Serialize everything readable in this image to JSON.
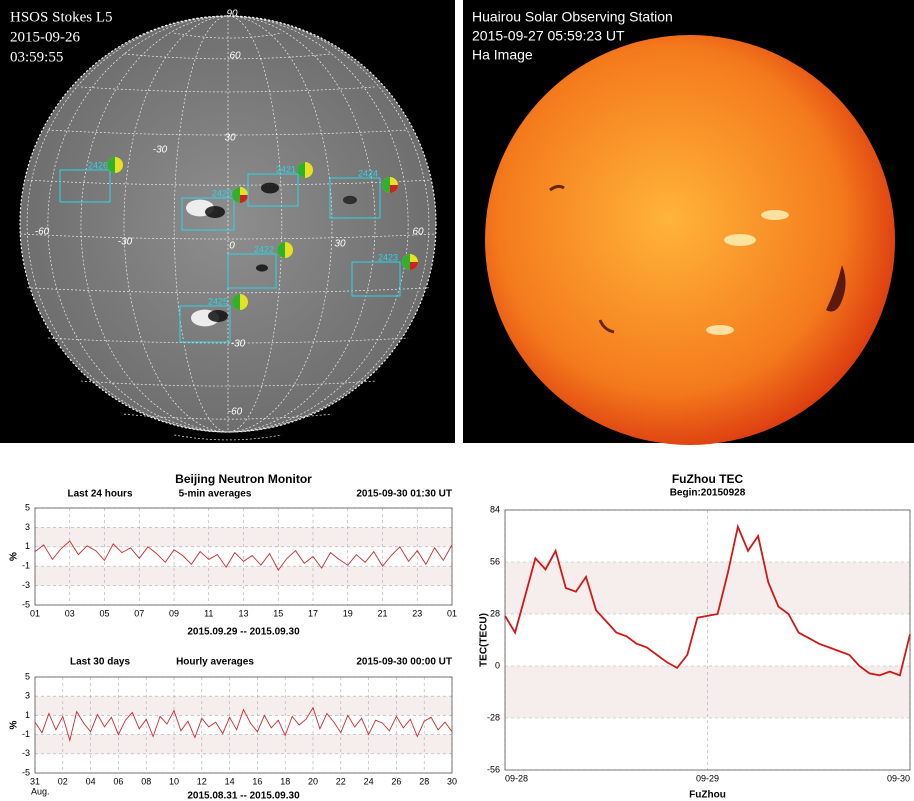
{
  "left_image": {
    "title": "HSOS Stokes L5",
    "date": "2015-09-26",
    "time": "03:59:55",
    "grid_labels": [
      "90",
      "60",
      "30",
      "0",
      "-60",
      "-30",
      "-30",
      "30",
      "60",
      "-30",
      "-60"
    ],
    "regions": [
      "2426",
      "2420",
      "2421",
      "2424",
      "2422",
      "2423",
      "2425"
    ]
  },
  "right_image": {
    "title": "Huairou Solar Observing Station",
    "date": "2015-09-27 05:59:23 UT",
    "caption": "Ha Image"
  },
  "chart_data": [
    {
      "type": "line",
      "title": "Beijing Neutron Monitor",
      "period": "Last 24 hours",
      "averaging": "5-min averages",
      "updated": "2015-09-30 01:30 UT",
      "ylabel": "%",
      "xlabel": "2015.09.29 -- 2015.09.30",
      "xlim": [
        1,
        25
      ],
      "ylim": [
        -5,
        5
      ],
      "yticks": [
        5,
        3,
        1,
        -1,
        -3,
        -5
      ],
      "xticks": [
        {
          "value": 1,
          "label": "01"
        },
        {
          "value": 3,
          "label": "03"
        },
        {
          "value": 5,
          "label": "05"
        },
        {
          "value": 7,
          "label": "07"
        },
        {
          "value": 9,
          "label": "09"
        },
        11,
        13,
        15,
        17,
        19,
        21,
        23,
        {
          "value": 25,
          "label": "01"
        }
      ],
      "grid": true,
      "color": "#d42a2a",
      "x": [
        1,
        1.5,
        2,
        2.5,
        3,
        3.5,
        4,
        4.5,
        5,
        5.5,
        6,
        6.5,
        7,
        7.5,
        8,
        8.5,
        9,
        9.5,
        10,
        10.5,
        11,
        11.5,
        12,
        12.5,
        13,
        13.5,
        14,
        14.5,
        15,
        15.5,
        16,
        16.5,
        17,
        17.5,
        18,
        18.5,
        19,
        19.5,
        20,
        20.5,
        21,
        21.5,
        22,
        22.5,
        23,
        23.5,
        24,
        24.5,
        25
      ],
      "values": [
        0.5,
        1.2,
        -0.3,
        0.8,
        1.6,
        0.2,
        1.1,
        0.6,
        -0.4,
        1.3,
        0.4,
        0.9,
        -0.2,
        1.0,
        0.3,
        -0.6,
        0.7,
        0.1,
        -0.8,
        0.5,
        -0.3,
        0.2,
        -1.1,
        0.4,
        -0.5,
        0.1,
        -0.9,
        0.3,
        -1.4,
        -0.2,
        0.6,
        -0.7,
        0.0,
        -1.2,
        0.4,
        -0.3,
        -0.9,
        0.2,
        -0.6,
        0.5,
        -1.0,
        0.1,
        1.0,
        -0.5,
        0.6,
        -0.8,
        0.9,
        -0.4,
        1.2
      ]
    },
    {
      "type": "line",
      "period": "Last 30 days",
      "averaging": "Hourly averages",
      "updated": "2015-09-30 00:00 UT",
      "ylabel": "%",
      "xlabel": "2015.08.31 -- 2015.09.30",
      "x_note": "Aug.",
      "xlim": [
        0,
        30
      ],
      "ylim": [
        -5,
        5
      ],
      "yticks": [
        5,
        3,
        1,
        -1,
        -3,
        -5
      ],
      "xticks": [
        {
          "value": 0,
          "label": "31"
        },
        {
          "value": 2,
          "label": "02"
        },
        {
          "value": 4,
          "label": "04"
        },
        {
          "value": 6,
          "label": "06"
        },
        {
          "value": 8,
          "label": "08"
        },
        10,
        12,
        14,
        16,
        18,
        20,
        22,
        24,
        26,
        28,
        30
      ],
      "grid": true,
      "color": "#d42a2a",
      "x": [
        0,
        0.5,
        1,
        1.5,
        2,
        2.5,
        3,
        3.5,
        4,
        4.5,
        5,
        5.5,
        6,
        6.5,
        7,
        7.5,
        8,
        8.5,
        9,
        9.5,
        10,
        10.5,
        11,
        11.5,
        12,
        12.5,
        13,
        13.5,
        14,
        14.5,
        15,
        15.5,
        16,
        16.5,
        17,
        17.5,
        18,
        18.5,
        19,
        19.5,
        20,
        20.5,
        21,
        21.5,
        22,
        22.5,
        23,
        23.5,
        24,
        24.5,
        25,
        25.5,
        26,
        26.5,
        27,
        27.5,
        28,
        28.5,
        29,
        29.5,
        30
      ],
      "values": [
        0.3,
        -0.8,
        1.2,
        -0.5,
        0.9,
        -1.6,
        1.4,
        0.2,
        -0.7,
        1.1,
        -0.2,
        0.8,
        -1.0,
        0.5,
        1.3,
        -0.4,
        0.6,
        -1.2,
        0.9,
        0.1,
        1.5,
        -0.6,
        0.4,
        -1.3,
        0.7,
        -0.2,
        0.3,
        -0.9,
        0.8,
        -0.5,
        1.6,
        0.2,
        -0.7,
        1.0,
        -0.3,
        0.5,
        -1.1,
        0.9,
        0.0,
        0.6,
        1.8,
        -0.4,
        1.2,
        0.3,
        -0.8,
        1.0,
        -0.2,
        0.7,
        -1.0,
        0.5,
        0.2,
        -0.6,
        0.9,
        -0.3,
        0.6,
        -1.2,
        0.4,
        0.8,
        -0.5,
        0.3,
        -0.7
      ]
    },
    {
      "type": "line",
      "title": "FuZhou TEC",
      "subtitle": "Begin:20150928",
      "ylabel": "TEC(TECU)",
      "xlabel": "FuZhou",
      "xlim": [
        0,
        2
      ],
      "ylim": [
        -56,
        84
      ],
      "yticks": [
        -56,
        -28,
        0,
        28,
        56,
        84
      ],
      "xticks": [
        {
          "value": 0,
          "label": "09-28"
        },
        {
          "value": 1,
          "label": "09-29"
        },
        {
          "value": 2,
          "label": "09-30"
        }
      ],
      "grid": true,
      "color": "#d01818",
      "x": [
        0,
        0.05,
        0.1,
        0.15,
        0.2,
        0.25,
        0.3,
        0.35,
        0.4,
        0.45,
        0.5,
        0.55,
        0.6,
        0.65,
        0.7,
        0.75,
        0.8,
        0.85,
        0.9,
        0.95,
        1,
        1.05,
        1.1,
        1.15,
        1.2,
        1.25,
        1.3,
        1.35,
        1.4,
        1.45,
        1.5,
        1.55,
        1.6,
        1.65,
        1.7,
        1.75,
        1.8,
        1.85,
        1.9,
        1.95,
        2
      ],
      "values": [
        27,
        18,
        38,
        58,
        52,
        62,
        42,
        40,
        48,
        30,
        24,
        18,
        16,
        12,
        10,
        6,
        2,
        -1,
        6,
        26,
        27,
        28,
        50,
        75,
        62,
        70,
        45,
        32,
        28,
        18,
        15,
        12,
        10,
        8,
        6,
        0,
        -4,
        -5,
        -3,
        -5,
        17
      ]
    }
  ]
}
